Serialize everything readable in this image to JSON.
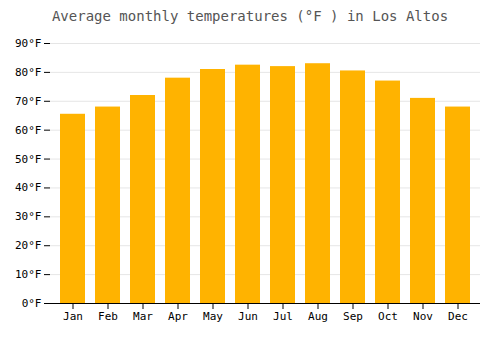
{
  "chart_data": {
    "type": "bar",
    "title": "Average monthly temperatures (°F ) in Los Altos",
    "categories": [
      "Jan",
      "Feb",
      "Mar",
      "Apr",
      "May",
      "Jun",
      "Jul",
      "Aug",
      "Sep",
      "Oct",
      "Nov",
      "Dec"
    ],
    "values": [
      65.5,
      68.0,
      72.0,
      78.0,
      81.0,
      82.5,
      82.0,
      83.0,
      80.5,
      77.0,
      71.0,
      68.0
    ],
    "color": "#FFB300",
    "ylim": [
      0,
      90
    ],
    "yticks": [
      {
        "value": 0,
        "label": "0°F"
      },
      {
        "value": 10,
        "label": "10°F"
      },
      {
        "value": 20,
        "label": "20°F"
      },
      {
        "value": 30,
        "label": "30°F"
      },
      {
        "value": 40,
        "label": "40°F"
      },
      {
        "value": 50,
        "label": "50°F"
      },
      {
        "value": 60,
        "label": "60°F"
      },
      {
        "value": 70,
        "label": "70°F"
      },
      {
        "value": 80,
        "label": "80°F"
      },
      {
        "value": 90,
        "label": "90°F"
      }
    ],
    "grid": true
  }
}
